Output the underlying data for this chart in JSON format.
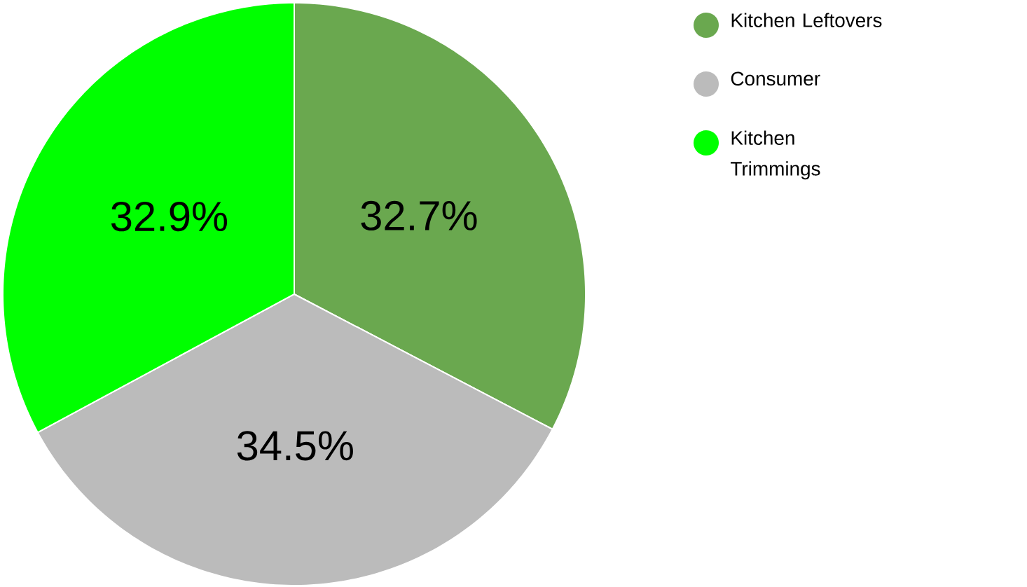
{
  "chart_data": {
    "type": "pie",
    "categories": [
      "Kitchen Leftovers",
      "Consumer",
      "Kitchen Trimmings"
    ],
    "values": [
      32.7,
      34.5,
      32.9
    ],
    "value_labels": [
      "32.7%",
      "34.5%",
      "32.9%"
    ],
    "colors": [
      "#6aa84f",
      "#bbbbbb",
      "#00ff00"
    ],
    "legend": "top right"
  }
}
